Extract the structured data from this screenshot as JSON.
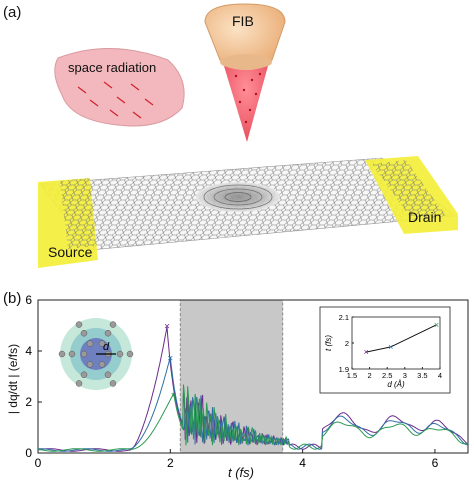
{
  "panel_a": {
    "label": "(a)",
    "fib_label": "FIB",
    "space_radiation_label": "space radiation",
    "source_label": "Source",
    "drain_label": "Drain",
    "colors": {
      "electrode": "#f3ef3a",
      "beam": "#f06a78",
      "radiation_blob": "#f2b8bd",
      "fib_head": "#f5c99a"
    }
  },
  "panel_b": {
    "label": "(b)",
    "chart_data": {
      "type": "line",
      "xlabel": "t (fs)",
      "ylabel": "| dq/dt | (e/fs)",
      "xlim": [
        0,
        6.5
      ],
      "ylim": [
        0,
        6
      ],
      "xticks": [
        "0",
        "2",
        "4",
        "6"
      ],
      "yticks": [
        "0",
        "2",
        "4",
        "6"
      ],
      "shaded_region": [
        2.15,
        3.7
      ],
      "series": [
        {
          "color": "#6a2c8a",
          "peak": [
            1.95,
            5.0
          ]
        },
        {
          "color": "#2e6fa6",
          "peak": [
            2.0,
            3.75
          ]
        },
        {
          "color": "#2a9a52",
          "peak": [
            2.05,
            2.3
          ]
        }
      ],
      "inset": {
        "type": "line",
        "xlabel": "d (Å)",
        "ylabel": "t (fs)",
        "xlim": [
          1.5,
          4
        ],
        "ylim": [
          1.9,
          2.1
        ],
        "xticks": [
          "1.5",
          "2",
          "2.5",
          "3",
          "3.5",
          "4"
        ],
        "yticks": [
          "1.9",
          "2",
          "2.1"
        ],
        "x": [
          1.9,
          2.6,
          3.9
        ],
        "y": [
          1.965,
          1.985,
          2.07
        ],
        "marker_colors": [
          "#6a2c8a",
          "#2e6fa6",
          "#2a9a52"
        ]
      },
      "molecule_label": "d"
    }
  }
}
